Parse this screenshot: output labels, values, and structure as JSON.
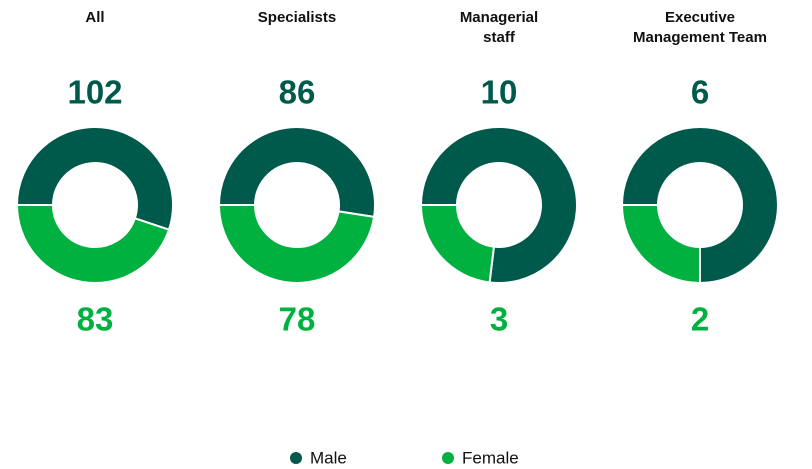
{
  "chart_data": [
    {
      "type": "donut",
      "title": "All",
      "categories": [
        "Male",
        "Female"
      ],
      "values": [
        102,
        83
      ],
      "colors": [
        "#005a4b",
        "#00b140"
      ]
    },
    {
      "type": "donut",
      "title": "Specialists",
      "categories": [
        "Male",
        "Female"
      ],
      "values": [
        86,
        78
      ],
      "colors": [
        "#005a4b",
        "#00b140"
      ]
    },
    {
      "type": "donut",
      "title": "Managerial\nstaff",
      "categories": [
        "Male",
        "Female"
      ],
      "values": [
        10,
        3
      ],
      "colors": [
        "#005a4b",
        "#00b140"
      ]
    },
    {
      "type": "donut",
      "title": "Executive\nManagement Team",
      "categories": [
        "Male",
        "Female"
      ],
      "values": [
        6,
        2
      ],
      "colors": [
        "#005a4b",
        "#00b140"
      ]
    }
  ]
}
